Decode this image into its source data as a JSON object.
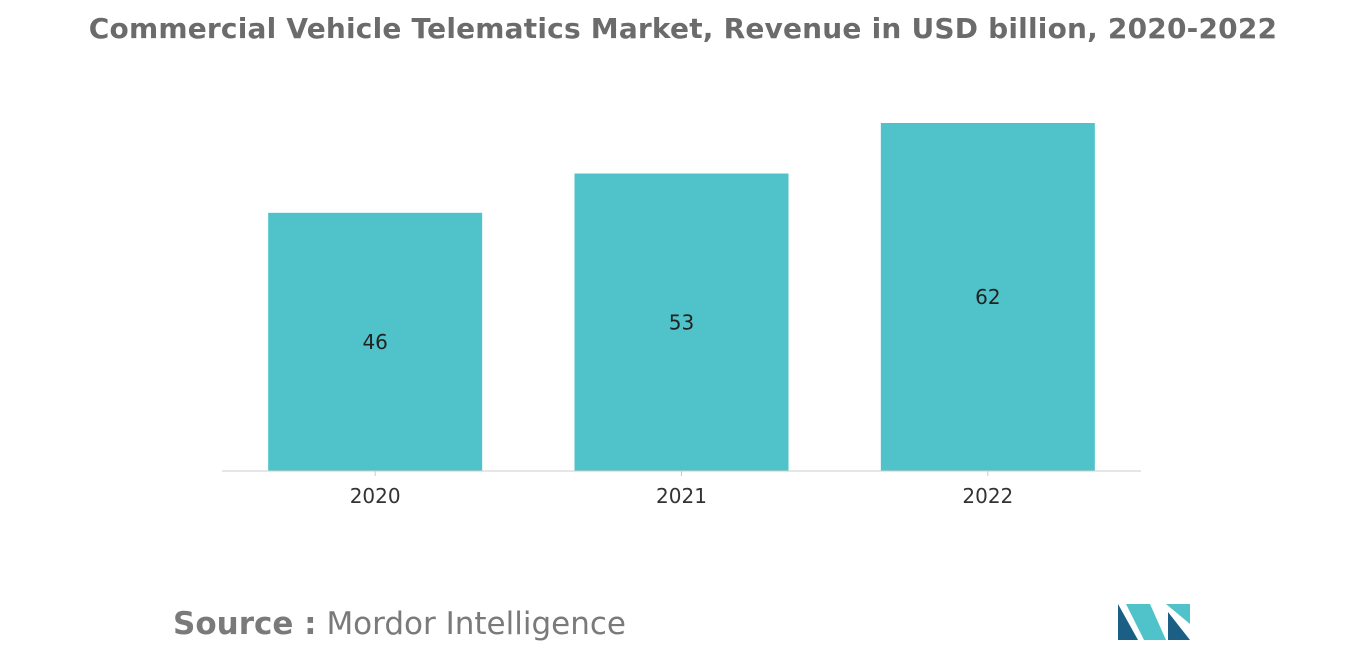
{
  "title": "Commercial Vehicle Telematics Market, Revenue in USD billion, 2020-2022",
  "source": {
    "label": "Source :",
    "text": "Mordor Intelligence"
  },
  "logo": {
    "icon": "mordor-intelligence-logo",
    "colors": [
      "#1b5f85",
      "#4fc3c9"
    ]
  },
  "chart_data": {
    "type": "bar",
    "categories": [
      "2020",
      "2021",
      "2022"
    ],
    "values": [
      46,
      53,
      62
    ],
    "data_labels": [
      "46",
      "53",
      "62"
    ],
    "title": "Commercial Vehicle Telematics Market, Revenue in USD billion, 2020-2022",
    "xlabel": "",
    "ylabel": "",
    "ylim": [
      0,
      62
    ],
    "grid": false,
    "legend": "none",
    "bar_color": "#4fc3c9"
  }
}
